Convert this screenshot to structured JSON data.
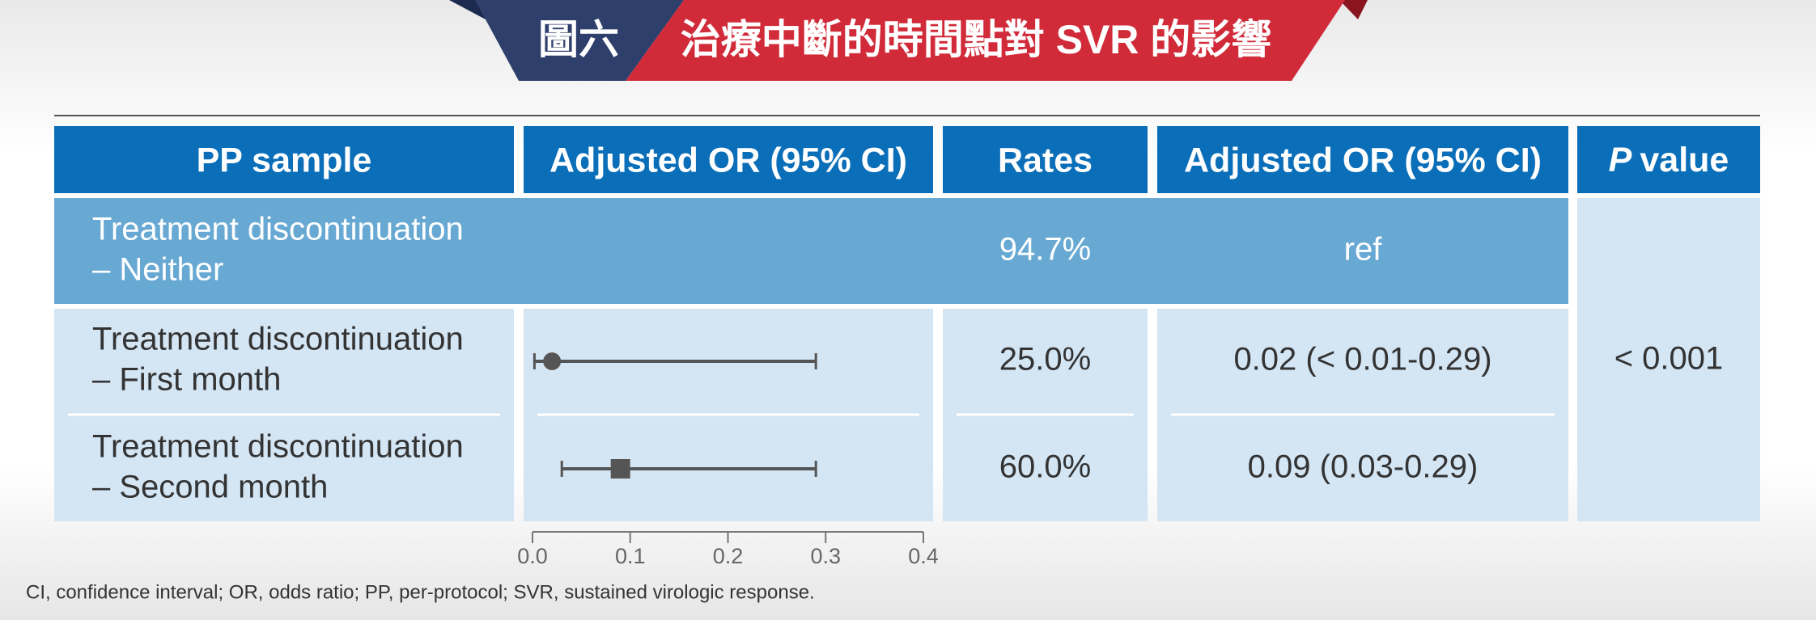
{
  "header": {
    "figure_label": "圖六",
    "title": "治療中斷的時間點對 SVR 的影響"
  },
  "table": {
    "columns": [
      "PP sample",
      "Adjusted OR (95% CI)",
      "Rates",
      "Adjusted OR (95% CI)"
    ],
    "p_column": {
      "italic": "P",
      "rest": "value"
    },
    "rows": [
      {
        "sample": [
          "Treatment discontinuation",
          "– Neither"
        ],
        "rate": "94.7%",
        "or_text": "ref"
      },
      {
        "sample": [
          "Treatment discontinuation",
          "– First month"
        ],
        "rate": "25.0%",
        "or_text": "0.02 (< 0.01-0.29)"
      },
      {
        "sample": [
          "Treatment discontinuation",
          "– Second month"
        ],
        "rate": "60.0%",
        "or_text": "0.09 (0.03-0.29)"
      }
    ],
    "p_value": "< 0.001"
  },
  "forest": {
    "xlim": [
      0,
      0.4
    ],
    "xticks": [
      {
        "value": 0,
        "label": "0.0"
      },
      0.1,
      0.2,
      0.3,
      0.4
    ],
    "estimates": [
      0.02,
      0.09
    ],
    "lower": [
      0.002,
      0.03
    ],
    "upper": [
      0.29,
      0.29
    ],
    "markers": [
      "circle",
      "square"
    ],
    "color": "#555555"
  },
  "footnote": "CI, confidence interval; OR, odds ratio; PP, per-protocol; SVR, sustained virologic response."
}
